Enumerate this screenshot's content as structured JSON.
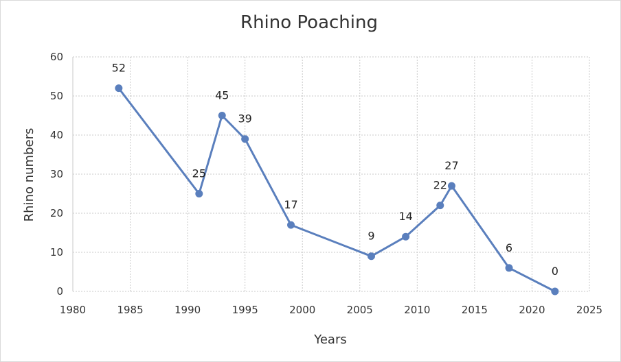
{
  "chart_data": {
    "type": "scatter",
    "title": "Rhino Poaching",
    "xlabel": "Years",
    "ylabel": "Rhino numbers",
    "xlim": [
      1980,
      2025
    ],
    "ylim": [
      0,
      60
    ],
    "xticks": [
      1980,
      1985,
      1990,
      1995,
      2000,
      2005,
      2010,
      2015,
      2020,
      2025
    ],
    "yticks": [
      0,
      10,
      20,
      30,
      40,
      50,
      60
    ],
    "grid": true,
    "legend": "none",
    "series": [
      {
        "color": "#5a7fbd",
        "x": [
          1984,
          1991,
          1993,
          1995,
          1999,
          2006,
          2009,
          2012,
          2013,
          2018,
          2022
        ],
        "y": [
          52,
          25,
          45,
          39,
          17,
          9,
          14,
          22,
          27,
          6,
          0
        ],
        "labels": [
          "52",
          "25",
          "45",
          "39",
          "17",
          "9",
          "14",
          "22",
          "27",
          "6",
          "0"
        ]
      }
    ]
  }
}
